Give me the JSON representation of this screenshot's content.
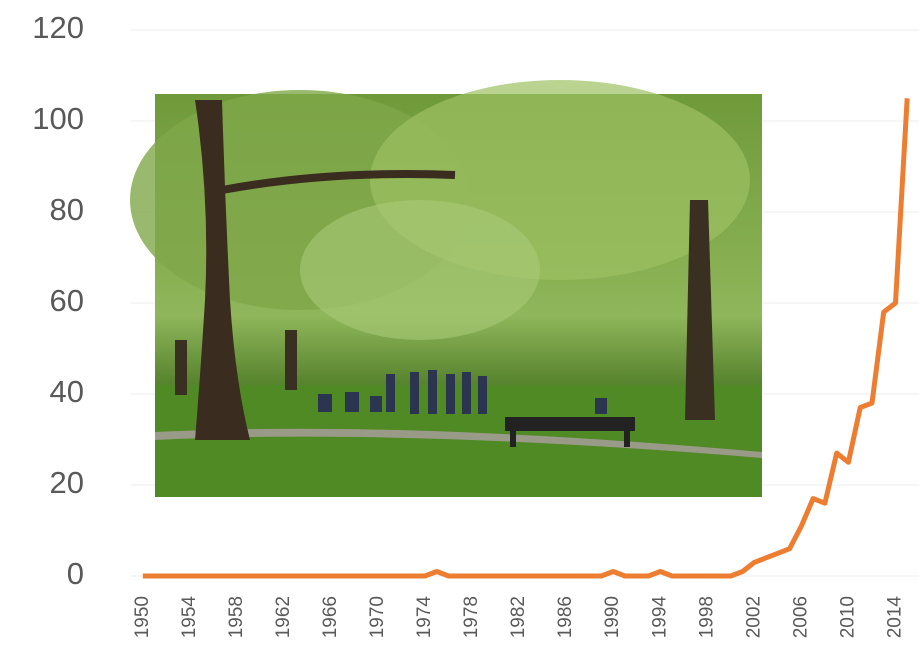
{
  "chart_data": {
    "type": "line",
    "x": [
      1950,
      1951,
      1952,
      1953,
      1954,
      1955,
      1956,
      1957,
      1958,
      1959,
      1960,
      1961,
      1962,
      1963,
      1964,
      1965,
      1966,
      1967,
      1968,
      1969,
      1970,
      1971,
      1972,
      1973,
      1974,
      1975,
      1976,
      1977,
      1978,
      1979,
      1980,
      1981,
      1982,
      1983,
      1984,
      1985,
      1986,
      1987,
      1988,
      1989,
      1990,
      1991,
      1992,
      1993,
      1994,
      1995,
      1996,
      1997,
      1998,
      1999,
      2000,
      2001,
      2002,
      2003,
      2004,
      2005,
      2006,
      2007,
      2008,
      2009,
      2010,
      2011,
      2012,
      2013,
      2014,
      2015
    ],
    "series": [
      {
        "color": "#ed7d31",
        "values": [
          0,
          0,
          0,
          0,
          0,
          0,
          0,
          0,
          0,
          0,
          0,
          0,
          0,
          0,
          0,
          0,
          0,
          0,
          0,
          0,
          0,
          0,
          0,
          0,
          0,
          1,
          0,
          0,
          0,
          0,
          0,
          0,
          0,
          0,
          0,
          0,
          0,
          0,
          0,
          0,
          1,
          0,
          0,
          0,
          1,
          0,
          0,
          0,
          0,
          0,
          0,
          1,
          3,
          4,
          5,
          6,
          11,
          17,
          16,
          27,
          25,
          37,
          38,
          58,
          60,
          105
        ]
      }
    ],
    "xlim": [
      1949,
      2016
    ],
    "xticks": [
      1950,
      1954,
      1958,
      1962,
      1966,
      1970,
      1974,
      1978,
      1982,
      1986,
      1990,
      1994,
      1998,
      2002,
      2006,
      2010,
      2014
    ],
    "ylim": [
      0,
      120
    ],
    "yticks": [
      0,
      20,
      40,
      60,
      80,
      100,
      120
    ],
    "grid": true
  }
}
